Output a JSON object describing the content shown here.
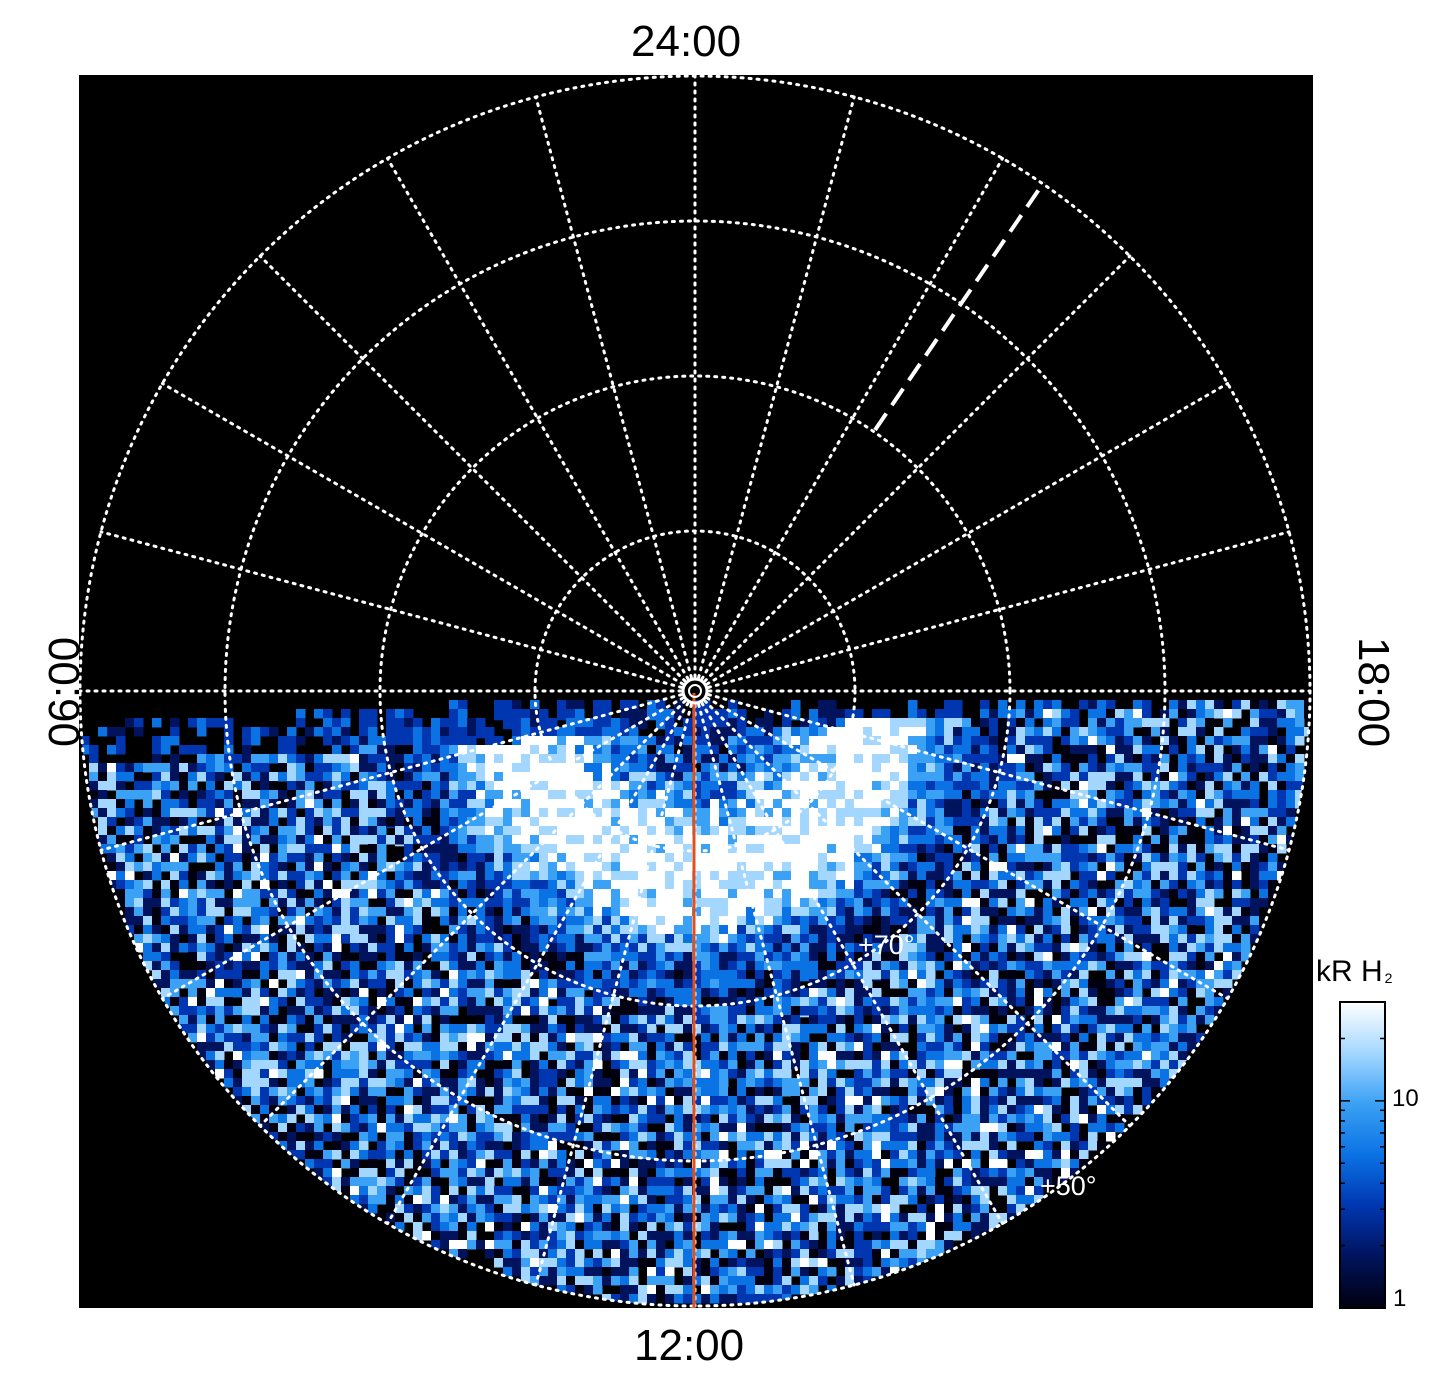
{
  "local_time_labels": {
    "top": "24:00",
    "bottom": "12:00",
    "left": "06:00",
    "right": "18:00"
  },
  "latitude_labels": {
    "lat_70": "+70°",
    "lat_50": "+50°"
  },
  "colorbar": {
    "title": "kR H",
    "title_subscript": "2",
    "tick_10": "10",
    "tick_1": "1",
    "scale": "log",
    "range": [
      1,
      30
    ],
    "colors": [
      "#000010",
      "#00135c",
      "#0036b0",
      "#0b72e4",
      "#3aa1f4",
      "#a4d7ff",
      "#ffffff"
    ]
  },
  "colors": {
    "background": "#000000",
    "grid": "#ffffff",
    "meridian_line": "#e0501c",
    "page": "#ffffff"
  }
}
